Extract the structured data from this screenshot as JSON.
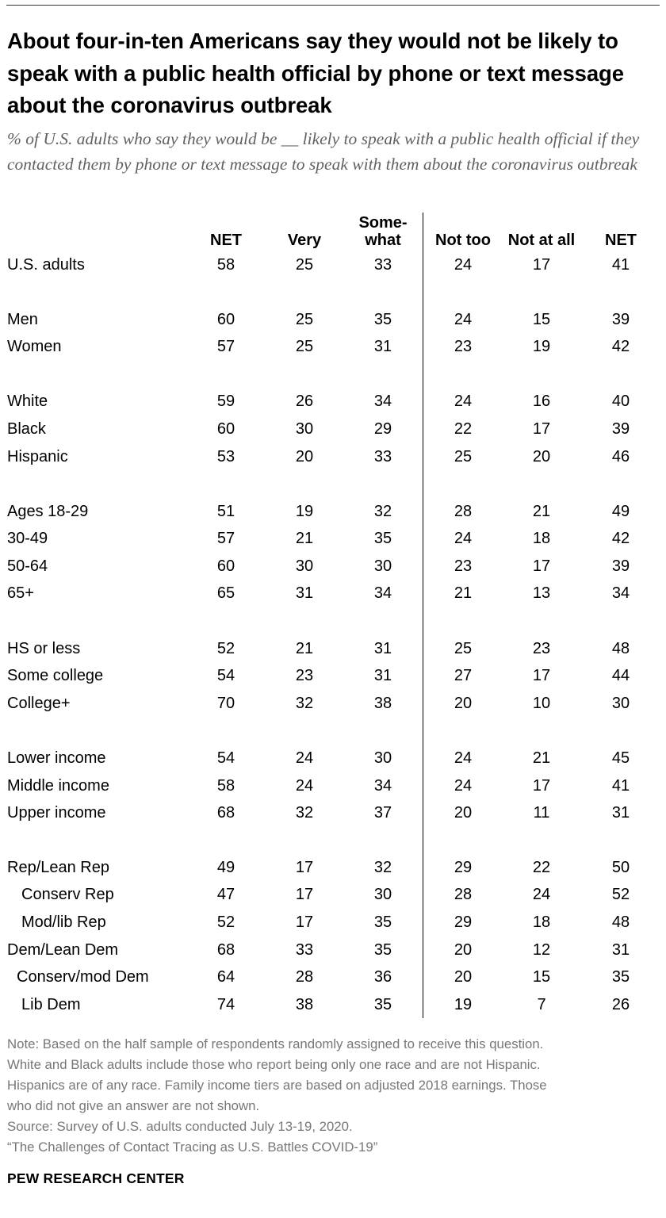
{
  "title": "About four-in-ten Americans say they would not be likely to speak with a public health official by phone or text message about the coronavirus outbreak",
  "subtitle": "% of U.S. adults who say they would be __ likely to speak with a public health official if they contacted them by phone or text message to speak with them about the coronavirus outbreak",
  "chart_data": {
    "type": "table",
    "columns": [
      "NET",
      "Very",
      "Some-\nwhat",
      "Not too",
      "Not at all",
      "NET"
    ],
    "rows": [
      {
        "label": "U.S. adults",
        "values": [
          58,
          25,
          33,
          24,
          17,
          41
        ]
      },
      {
        "label": "Men",
        "values": [
          60,
          25,
          35,
          24,
          15,
          39
        ]
      },
      {
        "label": "Women",
        "values": [
          57,
          25,
          31,
          23,
          19,
          42
        ]
      },
      {
        "label": "White",
        "values": [
          59,
          26,
          34,
          24,
          16,
          40
        ]
      },
      {
        "label": "Black",
        "values": [
          60,
          30,
          29,
          22,
          17,
          39
        ]
      },
      {
        "label": "Hispanic",
        "values": [
          53,
          20,
          33,
          25,
          20,
          46
        ]
      },
      {
        "label": "Ages 18-29",
        "values": [
          51,
          19,
          32,
          28,
          21,
          49
        ]
      },
      {
        "label": "30-49",
        "values": [
          57,
          21,
          35,
          24,
          18,
          42
        ]
      },
      {
        "label": "50-64",
        "values": [
          60,
          30,
          30,
          23,
          17,
          39
        ]
      },
      {
        "label": "65+",
        "values": [
          65,
          31,
          34,
          21,
          13,
          34
        ]
      },
      {
        "label": "HS or less",
        "values": [
          52,
          21,
          31,
          25,
          23,
          48
        ]
      },
      {
        "label": "Some college",
        "values": [
          54,
          23,
          31,
          27,
          17,
          44
        ]
      },
      {
        "label": "College+",
        "values": [
          70,
          32,
          38,
          20,
          10,
          30
        ]
      },
      {
        "label": "Lower income",
        "values": [
          54,
          24,
          30,
          24,
          21,
          45
        ]
      },
      {
        "label": "Middle income",
        "values": [
          58,
          24,
          34,
          24,
          17,
          41
        ]
      },
      {
        "label": "Upper income",
        "values": [
          68,
          32,
          37,
          20,
          11,
          31
        ]
      },
      {
        "label": "Rep/Lean Rep",
        "values": [
          49,
          17,
          32,
          29,
          22,
          50
        ]
      },
      {
        "label": "Conserv Rep",
        "values": [
          47,
          17,
          30,
          28,
          24,
          52
        ]
      },
      {
        "label": "Mod/lib Rep",
        "values": [
          52,
          17,
          35,
          29,
          18,
          48
        ]
      },
      {
        "label": "Dem/Lean Dem",
        "values": [
          68,
          33,
          35,
          20,
          12,
          31
        ]
      },
      {
        "label": "Conserv/mod Dem",
        "values": [
          64,
          28,
          36,
          20,
          15,
          35
        ]
      },
      {
        "label": "Lib Dem",
        "values": [
          74,
          38,
          35,
          19,
          7,
          26
        ]
      }
    ]
  },
  "notes": [
    "Note: Based on the half sample of respondents randomly assigned to receive this question.",
    "White and Black adults include those who report being only one race and are not Hispanic.",
    "Hispanics are of any race. Family income tiers are based on adjusted 2018 earnings. Those",
    "who did not give an answer are not shown.",
    "Source: Survey of U.S. adults conducted July 13-19, 2020.",
    "“The Challenges of Contact Tracing as U.S. Battles COVID-19”"
  ],
  "brand": "PEW RESEARCH CENTER",
  "colors": {
    "text": "#000000",
    "subtitle": "#616161",
    "note": "#777777",
    "divider": "#000000"
  }
}
